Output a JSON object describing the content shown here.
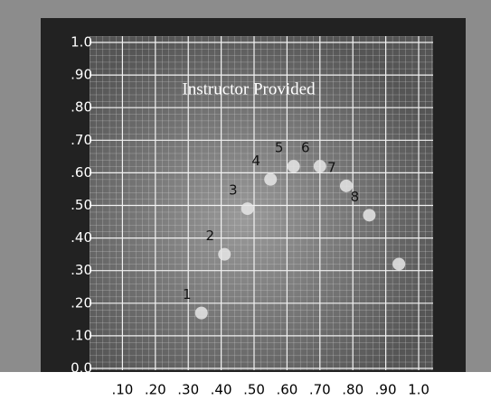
{
  "chart_data": {
    "type": "scatter",
    "title": "Instructor Provided",
    "x": [
      0.34,
      0.41,
      0.48,
      0.55,
      0.62,
      0.7,
      0.78,
      0.85,
      0.94
    ],
    "values": [
      0.17,
      0.35,
      0.49,
      0.58,
      0.62,
      0.62,
      0.56,
      0.47,
      0.32
    ],
    "labels": [
      "1",
      "2",
      "3",
      "4",
      "5",
      "6",
      "7",
      "8",
      null
    ],
    "color": "#e6e6e6",
    "xlim": [
      0,
      1
    ],
    "ylim": [
      0,
      1
    ],
    "xticks": [
      {
        "value": 0.1,
        "label": ".10"
      },
      {
        "value": 0.2,
        "label": ".20"
      },
      {
        "value": 0.3,
        "label": ".30"
      },
      {
        "value": 0.4,
        "label": ".40"
      },
      {
        "value": 0.5,
        "label": ".50"
      },
      {
        "value": 0.6,
        "label": ".60"
      },
      {
        "value": 0.7,
        "label": ".70"
      },
      {
        "value": 0.8,
        "label": ".80"
      },
      {
        "value": 0.9,
        "label": ".90"
      },
      {
        "value": 1,
        "label": "1.0"
      }
    ],
    "yticks": [
      {
        "value": 0,
        "label": "0.0"
      },
      {
        "value": 0.1,
        "label": ".10"
      },
      {
        "value": 0.2,
        "label": ".20"
      },
      {
        "value": 0.3,
        "label": ".30"
      },
      {
        "value": 0.4,
        "label": ".40"
      },
      {
        "value": 0.5,
        "label": ".50"
      },
      {
        "value": 0.6,
        "label": ".60"
      },
      {
        "value": 0.7,
        "label": ".70"
      },
      {
        "value": 0.8,
        "label": ".80"
      },
      {
        "value": 0.9,
        "label": ".90"
      },
      {
        "value": 1,
        "label": "1.0"
      }
    ],
    "grid": true
  }
}
